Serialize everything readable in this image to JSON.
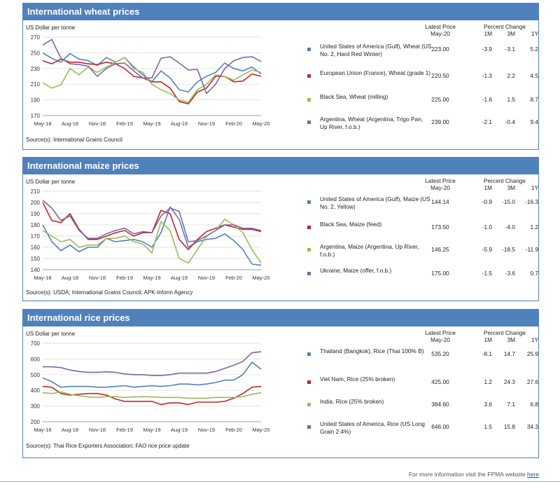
{
  "footer": {
    "text": "For more information visit the FPMA website",
    "link": "here"
  },
  "headers": {
    "latest": "Latest Price",
    "date": "May-20",
    "pc": "Percent Change",
    "m1": "1M",
    "m3": "3M",
    "y1": "1Y"
  },
  "wheat": {
    "title": "International wheat prices",
    "unit": "US Dollar per tonne",
    "source": "Source(s): International Grains Council",
    "rows": [
      {
        "label": "United States of America (Gulf), Wheat (US No. 2, Hard Red Winter)",
        "price": "223.00",
        "m1": "-3.9",
        "m3": "-3.1",
        "y1": "5.2",
        "color": "#4f81bd"
      },
      {
        "label": "European Union (France), Wheat (grade 1)",
        "price": "220.50",
        "m1": "-1.3",
        "m3": "2.2",
        "y1": "4.5",
        "color": "#c0262d"
      },
      {
        "label": "Black Sea, Wheat (milling)",
        "price": "225.00",
        "m1": "-1.6",
        "m3": "1.5",
        "y1": "8.7",
        "color": "#9bbb59"
      },
      {
        "label": "Argentina, Wheat (Argentina, Trigo Pan, Up River, f.o.b.)",
        "price": "239.00",
        "m1": "-2.1",
        "m3": "-0.4",
        "y1": "9.4",
        "color": "#8064a2"
      }
    ]
  },
  "maize": {
    "title": "International maize prices",
    "unit": "US Dollar per tonne",
    "source": "Source(s): USDA; International Grains Council; APK-Inform Agency",
    "rows": [
      {
        "label": "United States of America (Gulf), Maize (US No. 2, Yellow)",
        "price": "144.14",
        "m1": "-0.9",
        "m3": "-15.0",
        "y1": "-16.3",
        "color": "#4f81bd"
      },
      {
        "label": "Black Sea, Maize (feed)",
        "price": "173.50",
        "m1": "-1.0",
        "m3": "-4.0",
        "y1": "1.2",
        "color": "#c0262d"
      },
      {
        "label": "Argentina, Maize (Argentina, Up River, f.o.b.)",
        "price": "146.25",
        "m1": "-5.9",
        "m3": "-18.5",
        "y1": "-11.9",
        "color": "#9bbb59"
      },
      {
        "label": "Ukraine, Maize (offer, f.o.b.)",
        "price": "175.00",
        "m1": "-1.5",
        "m3": "-3.6",
        "y1": "0.7",
        "color": "#8064a2"
      }
    ]
  },
  "rice": {
    "title": "International rice prices",
    "unit": "US Dollar per tonne",
    "source": "Source(s): Thai Rice Exporters Association; FAO rice price update",
    "rows": [
      {
        "label": "Thailand (Bangkok), Rice (Thai 100% B)",
        "price": "535.20",
        "m1": "-8.1",
        "m3": "14.7",
        "y1": "25.9",
        "color": "#4f81bd"
      },
      {
        "label": "Viet Nam, Rice (25% broken)",
        "price": "425.00",
        "m1": "1.2",
        "m3": "24.3",
        "y1": "27.6",
        "color": "#c0262d"
      },
      {
        "label": "India, Rice (25% broken)",
        "price": "384.60",
        "m1": "3.6",
        "m3": "7.1",
        "y1": "6.8",
        "color": "#9bbb59"
      },
      {
        "label": "United States of America, Rice (US Long Grain 2.4%)",
        "price": "646.00",
        "m1": "1.5",
        "m3": "15.8",
        "y1": "34.3",
        "color": "#8064a2"
      }
    ]
  },
  "chart_data": [
    {
      "id": "wheat",
      "type": "line",
      "ylabel": "US Dollar per tonne",
      "ylim": [
        170,
        270
      ],
      "yticks": [
        170,
        190,
        210,
        230,
        250,
        270
      ],
      "x": [
        "May-18",
        "Jun-18",
        "Jul-18",
        "Aug-18",
        "Sep-18",
        "Oct-18",
        "Nov-18",
        "Dec-18",
        "Jan-19",
        "Feb-19",
        "Mar-19",
        "Apr-19",
        "May-19",
        "Jun-19",
        "Jul-19",
        "Aug-19",
        "Sep-19",
        "Oct-19",
        "Nov-19",
        "Dec-19",
        "Jan-20",
        "Feb-20",
        "Mar-20",
        "Apr-20",
        "May-20"
      ],
      "xticks": [
        "May-18",
        "Aug-18",
        "Nov-18",
        "Feb-19",
        "May-19",
        "Aug-19",
        "Nov-19",
        "Feb-20",
        "May-20"
      ],
      "grid": true,
      "series": [
        {
          "name": "United States of America (Gulf), Wheat (US No. 2, Hard Red Winter)",
          "color": "#4f81bd",
          "values": [
            250,
            243,
            238,
            249,
            242,
            240,
            234,
            244,
            238,
            244,
            232,
            222,
            213,
            227,
            218,
            203,
            200,
            213,
            220,
            225,
            237,
            230,
            227,
            232,
            223
          ]
        },
        {
          "name": "European Union (France), Wheat (grade 1)",
          "color": "#c0262d",
          "values": [
            240,
            236,
            242,
            238,
            238,
            236,
            235,
            238,
            236,
            230,
            220,
            218,
            213,
            213,
            205,
            188,
            185,
            200,
            205,
            220,
            220,
            213,
            214,
            223,
            220
          ]
        },
        {
          "name": "Black Sea, Wheat (milling)",
          "color": "#9bbb59",
          "values": [
            212,
            205,
            209,
            230,
            222,
            232,
            225,
            232,
            238,
            244,
            230,
            225,
            210,
            203,
            198,
            190,
            187,
            203,
            210,
            222,
            220,
            215,
            222,
            228,
            225
          ]
        },
        {
          "name": "Argentina, Wheat (Argentina, Trigo Pan, Up River, f.o.b.)",
          "color": "#8064a2",
          "values": [
            260,
            267,
            243,
            236,
            235,
            233,
            220,
            230,
            236,
            237,
            227,
            218,
            218,
            243,
            245,
            237,
            228,
            229,
            198,
            210,
            230,
            240,
            244,
            245,
            239
          ]
        }
      ]
    },
    {
      "id": "maize",
      "type": "line",
      "ylabel": "US Dollar per tonne",
      "ylim": [
        140,
        210
      ],
      "yticks": [
        140,
        150,
        160,
        170,
        180,
        190,
        200,
        210
      ],
      "x": [
        "May-18",
        "Jun-18",
        "Jul-18",
        "Aug-18",
        "Sep-18",
        "Oct-18",
        "Nov-18",
        "Dec-18",
        "Jan-19",
        "Feb-19",
        "Mar-19",
        "Apr-19",
        "May-19",
        "Jun-19",
        "Jul-19",
        "Aug-19",
        "Sep-19",
        "Oct-19",
        "Nov-19",
        "Dec-19",
        "Jan-20",
        "Feb-20",
        "Mar-20",
        "Apr-20",
        "May-20"
      ],
      "xticks": [
        "May-18",
        "Aug-18",
        "Nov-18",
        "Feb-19",
        "May-19",
        "Aug-19",
        "Nov-19",
        "Feb-20",
        "May-20"
      ],
      "grid": true,
      "series": [
        {
          "name": "United States of America (Gulf), Maize (US No. 2, Yellow)",
          "color": "#4f81bd",
          "values": [
            180,
            165,
            157,
            162,
            156,
            160,
            160,
            168,
            165,
            166,
            167,
            165,
            160,
            173,
            196,
            185,
            160,
            165,
            167,
            168,
            172,
            166,
            158,
            145,
            144
          ]
        },
        {
          "name": "Black Sea, Maize (feed)",
          "color": "#c0262d",
          "values": [
            200,
            184,
            182,
            190,
            176,
            167,
            167,
            170,
            173,
            175,
            170,
            173,
            173,
            193,
            190,
            167,
            158,
            167,
            174,
            177,
            180,
            178,
            176,
            176,
            174
          ]
        },
        {
          "name": "Argentina, Maize (Argentina, Up River, f.o.b.)",
          "color": "#9bbb59",
          "values": [
            175,
            170,
            165,
            167,
            160,
            162,
            162,
            168,
            168,
            170,
            165,
            163,
            155,
            183,
            175,
            150,
            146,
            158,
            170,
            175,
            185,
            180,
            173,
            158,
            146
          ]
        },
        {
          "name": "Ukraine, Maize (offer, f.o.b.)",
          "color": "#8064a2",
          "values": [
            202,
            195,
            184,
            188,
            175,
            168,
            168,
            172,
            175,
            177,
            172,
            174,
            173,
            188,
            195,
            192,
            165,
            166,
            170,
            175,
            180,
            180,
            177,
            177,
            175
          ]
        }
      ]
    },
    {
      "id": "rice",
      "type": "line",
      "ylabel": "US Dollar per tonne",
      "ylim": [
        200,
        700
      ],
      "yticks": [
        200,
        300,
        400,
        500,
        600,
        700
      ],
      "x": [
        "May-18",
        "Jun-18",
        "Jul-18",
        "Aug-18",
        "Sep-18",
        "Oct-18",
        "Nov-18",
        "Dec-18",
        "Jan-19",
        "Feb-19",
        "Mar-19",
        "Apr-19",
        "May-19",
        "Jun-19",
        "Jul-19",
        "Aug-19",
        "Sep-19",
        "Oct-19",
        "Nov-19",
        "Dec-19",
        "Jan-20",
        "Feb-20",
        "Mar-20",
        "Apr-20",
        "May-20"
      ],
      "xticks": [
        "May-18",
        "Aug-18",
        "Nov-18",
        "Feb-19",
        "May-19",
        "Aug-19",
        "Nov-19",
        "Feb-20",
        "May-20"
      ],
      "grid": true,
      "series": [
        {
          "name": "Thailand (Bangkok), Rice (Thai 100% B)",
          "color": "#4f81bd",
          "values": [
            480,
            455,
            420,
            425,
            425,
            425,
            420,
            420,
            425,
            430,
            420,
            425,
            430,
            425,
            430,
            440,
            440,
            435,
            440,
            450,
            465,
            465,
            500,
            580,
            535
          ]
        },
        {
          "name": "Viet Nam, Rice (25% broken)",
          "color": "#c0262d",
          "values": [
            425,
            420,
            380,
            370,
            375,
            380,
            380,
            370,
            345,
            330,
            330,
            330,
            330,
            310,
            320,
            320,
            310,
            325,
            325,
            325,
            330,
            350,
            380,
            420,
            425
          ]
        },
        {
          "name": "India, Rice (25% broken)",
          "color": "#9bbb59",
          "values": [
            385,
            380,
            390,
            375,
            365,
            358,
            355,
            360,
            360,
            355,
            358,
            360,
            358,
            355,
            355,
            355,
            350,
            350,
            350,
            355,
            355,
            355,
            360,
            375,
            385
          ]
        },
        {
          "name": "United States of America, Rice (US Long Grain 2.4%)",
          "color": "#8064a2",
          "values": [
            550,
            550,
            545,
            530,
            520,
            515,
            515,
            518,
            515,
            505,
            500,
            500,
            495,
            495,
            500,
            510,
            510,
            510,
            510,
            520,
            540,
            560,
            585,
            640,
            646
          ]
        }
      ]
    }
  ]
}
